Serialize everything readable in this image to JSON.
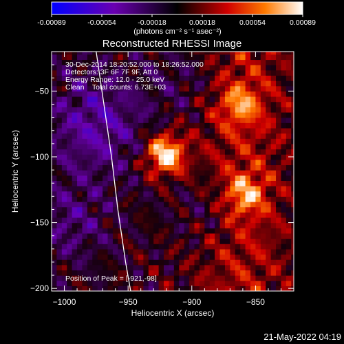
{
  "colorbar": {
    "ticks": [
      "-0.00089",
      "-0.00054",
      "-0.00018",
      "0.00018",
      "0.00054",
      "0.00089"
    ],
    "unit_label": "(photons cm⁻² s⁻¹ asec⁻²)",
    "range": [
      -0.00089,
      0.00089
    ]
  },
  "chart_data": {
    "type": "heatmap",
    "title": "Reconstructed RHESSI Image",
    "xlabel": "Heliocentric X (arcsec)",
    "ylabel": "Heliocentric Y (arcsec)",
    "xlim": [
      -1010,
      -820
    ],
    "ylim": [
      -202,
      -20
    ],
    "xticks": [
      -1000,
      -950,
      -900,
      -850
    ],
    "yticks": [
      -50,
      -100,
      -150,
      -200
    ],
    "xtick_labels": [
      "−1000",
      "−950",
      "−900",
      "−850"
    ],
    "ytick_labels": [
      "−50",
      "−100",
      "−150",
      "−200"
    ],
    "annotations": [
      "30-Dec-2014 18:20:52.000 to 18:26:52.000",
      "Detectors: 3F 6F 7F 9F, Att 0",
      "Energy Range: 12.0 - 25.0 keV",
      "Clean    Total counts: 6.73E+03"
    ],
    "peak_label": "Position of Peak = [-921,-98]",
    "peak": {
      "x": -921,
      "y": -98,
      "value": 0.00089
    },
    "sources": [
      {
        "x": -921,
        "y": -98,
        "value": 0.00089
      },
      {
        "x": -862,
        "y": -60,
        "value": 0.00045
      },
      {
        "x": -858,
        "y": -128,
        "value": 0.0005
      }
    ],
    "limb": [
      {
        "x": -975,
        "y": -20
      },
      {
        "x": -969,
        "y": -60
      },
      {
        "x": -963,
        "y": -100
      },
      {
        "x": -958,
        "y": -140
      },
      {
        "x": -952,
        "y": -180
      },
      {
        "x": -948,
        "y": -202
      }
    ],
    "grid": false,
    "colormap": "blue-purple-red-yellow-white"
  },
  "timestamp": "21-May-2022 04:19"
}
